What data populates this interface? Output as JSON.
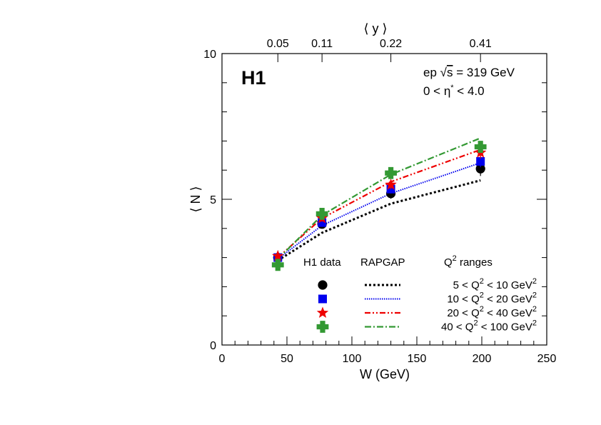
{
  "chart_data": {
    "type": "scatter",
    "logo": "H1",
    "annotation": {
      "line1_prefix": "ep ",
      "line1_root": "√",
      "line1_s": "s",
      "line1_suffix": " = 319 GeV",
      "line2_prefix": "0 < η",
      "line2_star": "*",
      "line2_suffix": " < 4.0"
    },
    "xlabel": "W (GeV)",
    "ylabel": "⟨ N ⟩",
    "top_axis_label": "⟨ y ⟩",
    "xlim": [
      0,
      250
    ],
    "ylim": [
      0,
      10
    ],
    "x_ticks": [
      0,
      50,
      100,
      150,
      200,
      250
    ],
    "y_ticks": [
      0,
      5,
      10
    ],
    "top_ticks": [
      {
        "label": "0.05",
        "W": 43
      },
      {
        "label": "0.11",
        "W": 77
      },
      {
        "label": "0.22",
        "W": 130
      },
      {
        "label": "0.41",
        "W": 199
      }
    ],
    "legend": {
      "col_data": "H1 data",
      "col_mc": "RAPGAP",
      "col_q2_prefix": "Q",
      "col_q2_sup": "2",
      "col_q2_suffix": " ranges"
    },
    "series": [
      {
        "label_pre": "5 < Q",
        "label_sup": "2",
        "label_mid": " < 10 GeV",
        "label_sup2": "2",
        "marker": "circle",
        "color": "#000000",
        "line_style": "dotted",
        "data": {
          "x": [
            43,
            77,
            130,
            199
          ],
          "y": [
            3.0,
            4.15,
            5.2,
            6.05
          ],
          "err": [
            0.1,
            0.12,
            0.18,
            0.25
          ]
        },
        "mc": {
          "x": [
            43,
            77,
            130,
            199
          ],
          "y": [
            2.9,
            3.85,
            4.85,
            5.65
          ]
        }
      },
      {
        "label_pre": "10 < Q",
        "label_sup": "2",
        "label_mid": " < 20 GeV",
        "label_sup2": "2",
        "marker": "square",
        "color": "#0000ee",
        "line_style": "fine-dotted",
        "data": {
          "x": [
            43,
            77,
            130,
            199
          ],
          "y": [
            3.0,
            4.2,
            5.35,
            6.3
          ],
          "err": [
            0.1,
            0.12,
            0.15,
            0.2
          ]
        },
        "mc": {
          "x": [
            43,
            77,
            130,
            199
          ],
          "y": [
            2.95,
            4.1,
            5.2,
            6.25
          ]
        }
      },
      {
        "label_pre": "20 < Q",
        "label_sup": "2",
        "label_mid": " < 40 GeV",
        "label_sup2": "2",
        "marker": "star",
        "color": "#ee0000",
        "line_style": "dash-dot-dot",
        "data": {
          "x": [
            43,
            77,
            130,
            199
          ],
          "y": [
            3.05,
            4.35,
            5.5,
            6.6
          ],
          "err": [
            0.1,
            0.12,
            0.15,
            0.2
          ]
        },
        "mc": {
          "x": [
            43,
            77,
            130,
            199
          ],
          "y": [
            3.0,
            4.35,
            5.6,
            6.7
          ]
        }
      },
      {
        "label_pre": "40 < Q",
        "label_sup": "2",
        "label_mid": " < 100 GeV",
        "label_sup2": "2",
        "marker": "cross",
        "color": "#339933",
        "line_style": "dash-dot",
        "data": {
          "x": [
            43,
            77,
            130,
            199
          ],
          "y": [
            2.75,
            4.5,
            5.9,
            6.8
          ],
          "err": [
            0.1,
            0.12,
            0.15,
            0.2
          ]
        },
        "mc": {
          "x": [
            43,
            77,
            130,
            199
          ],
          "y": [
            2.95,
            4.45,
            5.85,
            7.1
          ]
        }
      }
    ]
  }
}
